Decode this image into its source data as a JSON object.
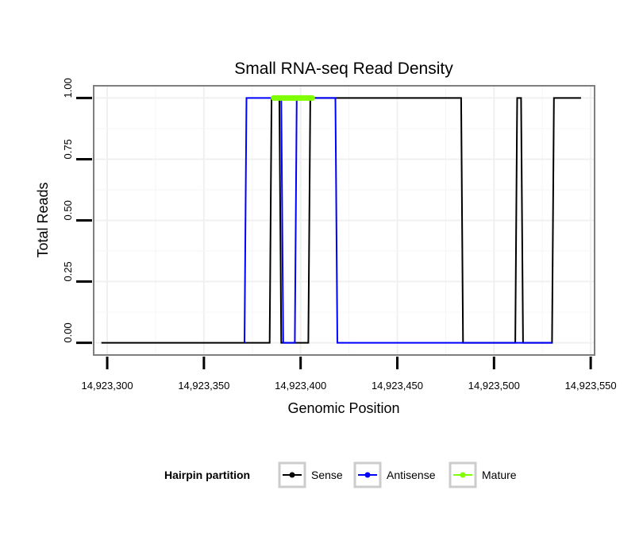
{
  "chart_data": {
    "type": "line",
    "title": "Small RNA-seq Read Density",
    "xlabel": "Genomic Position",
    "ylabel": "Total Reads",
    "xlim": [
      14923293,
      14923552
    ],
    "ylim": [
      -0.05,
      1.05
    ],
    "x_ticks": [
      14923300,
      14923350,
      14923400,
      14923450,
      14923500,
      14923550
    ],
    "x_tick_labels": [
      "14,923,300",
      "14,923,350",
      "14,923,400",
      "14,923,450",
      "14,923,500",
      "14,923,550"
    ],
    "y_ticks": [
      0,
      0.25,
      0.5,
      0.75,
      1.0
    ],
    "y_tick_labels": [
      "0.00",
      "0.25",
      "0.50",
      "0.75",
      "1.00"
    ],
    "grid": true,
    "legend_title": "Hairpin partition",
    "legend_position": "bottom",
    "series": [
      {
        "name": "Sense",
        "color": "#000000",
        "x": [
          14923297,
          14923384,
          14923385,
          14923389,
          14923390,
          14923404,
          14923405,
          14923483,
          14923484,
          14923511,
          14923512,
          14923514,
          14923515,
          14923530,
          14923531,
          14923545
        ],
        "y": [
          0,
          0,
          1,
          1,
          0,
          0,
          1,
          1,
          0,
          0,
          1,
          1,
          0,
          0,
          1,
          1
        ]
      },
      {
        "name": "Antisense",
        "color": "#0000ff",
        "x": [
          14923371,
          14923372,
          14923390,
          14923391,
          14923397,
          14923398,
          14923418,
          14923419,
          14923483,
          14923513,
          14923530
        ],
        "y": [
          0,
          1,
          1,
          0,
          0,
          1,
          1,
          0,
          0,
          0,
          0
        ]
      },
      {
        "name": "Mature",
        "color": "#7fff00",
        "x": [
          14923386,
          14923406
        ],
        "y": [
          1,
          1
        ]
      }
    ]
  }
}
